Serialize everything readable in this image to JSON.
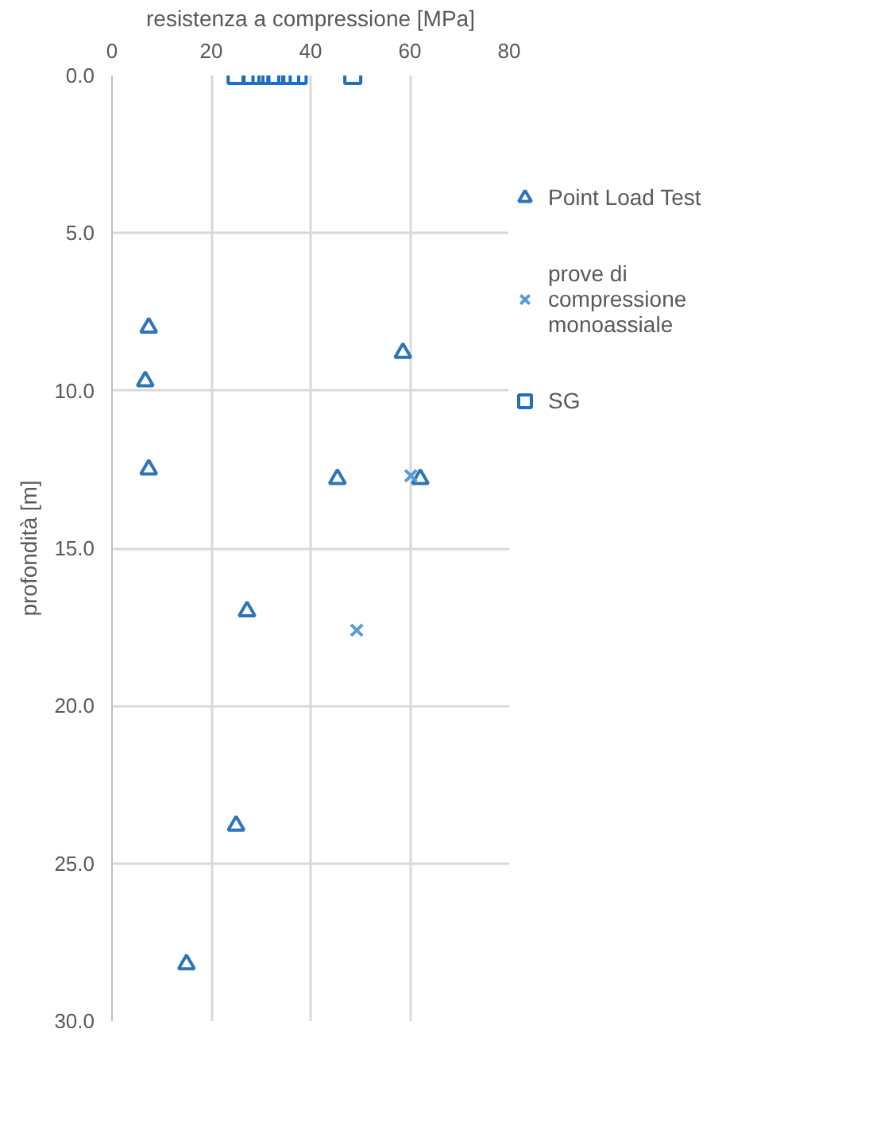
{
  "chart_data": {
    "type": "scatter",
    "xlabel": "resistenza a compressione [MPa]",
    "ylabel": "profondità [m]",
    "xlim": [
      0,
      80
    ],
    "xticks": [
      0,
      20,
      40,
      60,
      80
    ],
    "ylim": [
      30,
      0
    ],
    "yticks": [
      {
        "value": 0,
        "label": "0.0"
      },
      {
        "value": 5,
        "label": "5.0"
      },
      {
        "value": 10,
        "label": "10.0"
      },
      {
        "value": 15,
        "label": "15.0"
      },
      {
        "value": 20,
        "label": "20.0"
      },
      {
        "value": 25,
        "label": "25.0"
      },
      {
        "value": 30,
        "label": "30.0"
      }
    ],
    "grid": true,
    "legend": "right",
    "series": [
      {
        "name": "Point Load Test",
        "color": "#2e75b6",
        "marker": "triangle",
        "x": [
          7.4,
          6.7,
          7.4,
          58.6,
          45.4,
          62.1,
          27.2,
          25,
          15
        ],
        "values": [
          8.0,
          9.7,
          12.5,
          8.8,
          12.8,
          12.8,
          17.0,
          23.8,
          28.2
        ]
      },
      {
        "name": "prove di compressione monoassiale",
        "color": "#5b9bd5",
        "marker": "cross",
        "x": [
          60.2,
          49.3
        ],
        "values": [
          12.7,
          17.6
        ]
      },
      {
        "name": "SG",
        "color": "#1f6fc1",
        "marker": "square",
        "x": [
          25,
          28,
          30,
          32,
          33,
          36,
          37.5,
          48.5
        ],
        "values": [
          0,
          0,
          0,
          0,
          0,
          0,
          0,
          0
        ]
      }
    ]
  }
}
